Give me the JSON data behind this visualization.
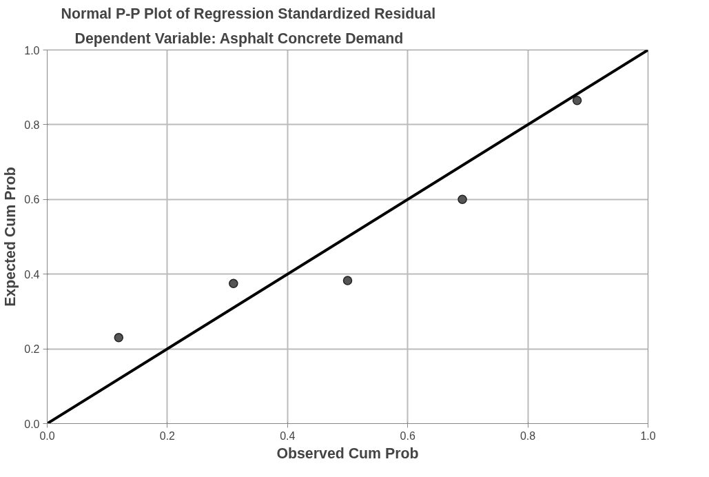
{
  "chart_data": {
    "type": "scatter",
    "title": "Normal P-P Plot of Regression Standardized Residual",
    "subtitle": "Dependent Variable: Asphalt Concrete Demand",
    "xlabel": "Observed Cum Prob",
    "ylabel": "Expected Cum Prob",
    "series": [
      {
        "color": "#555555",
        "x": [
          0.119,
          0.31,
          0.5,
          0.691,
          0.882
        ],
        "values": [
          0.23,
          0.375,
          0.383,
          0.6,
          0.865
        ]
      },
      {
        "type": "line",
        "marker": "none",
        "color": "#000000",
        "x": [
          0.0,
          1.0
        ],
        "values": [
          0.0,
          1.0
        ]
      }
    ],
    "xlim": [
      0.0,
      1.0
    ],
    "ylim": [
      0.0,
      1.0
    ],
    "xticks": [
      {
        "value": 0,
        "label": "0.0"
      },
      0.2,
      0.4,
      0.6,
      0.8,
      {
        "value": 1,
        "label": "1.0"
      }
    ],
    "yticks": [
      {
        "value": 0,
        "label": "0.0"
      },
      0.2,
      0.4,
      0.6,
      0.8,
      {
        "value": 1,
        "label": "1.0"
      }
    ],
    "grid": true,
    "marker": "circle"
  }
}
